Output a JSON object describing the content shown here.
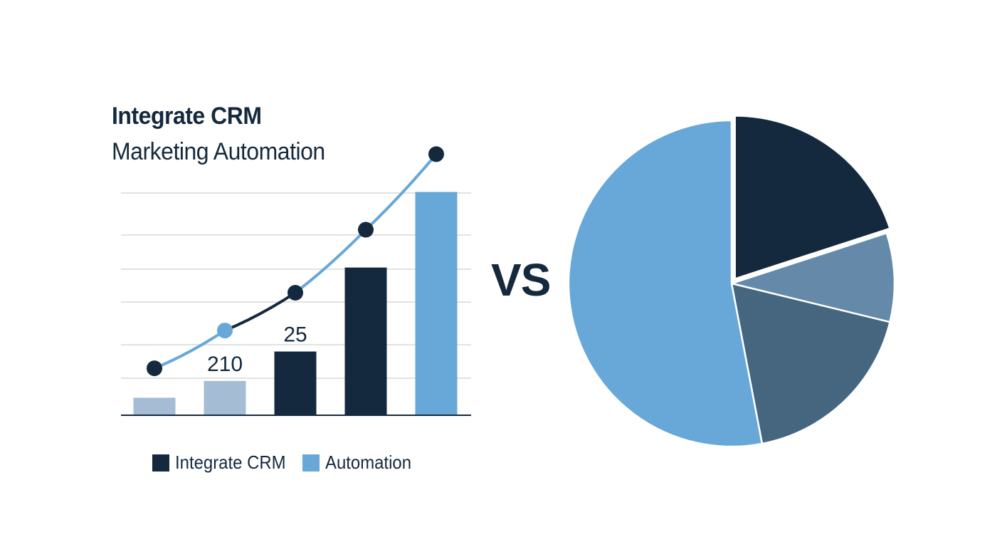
{
  "title": {
    "line1": "Integrate CRM",
    "line2": "Marketing Automation"
  },
  "vs_label": "VS",
  "colors": {
    "navy": "#14293d",
    "blue": "#67a8d8",
    "light_blue": "#a4bcd4",
    "steel": "#6589a8",
    "slate": "#46657f",
    "grid": "#d9d9d9",
    "axis": "#14293d"
  },
  "chart_data": [
    {
      "type": "bar",
      "categories": [
        "",
        "",
        "",
        "",
        ""
      ],
      "values": [
        4,
        8,
        15,
        35,
        53
      ],
      "bar_colors": [
        "light_blue",
        "light_blue",
        "navy",
        "navy",
        "blue"
      ],
      "data_labels": [
        "",
        "210",
        "25",
        "",
        ""
      ],
      "ylim": [
        0,
        58
      ],
      "grid": true,
      "trend_line": {
        "values": [
          11,
          20,
          29,
          44,
          62
        ],
        "point_colors": [
          "navy",
          "blue",
          "navy",
          "navy",
          "navy"
        ],
        "segment_colors": [
          "blue",
          "navy",
          "blue",
          "blue"
        ]
      },
      "legend": {
        "placement": "bottom",
        "entries": [
          {
            "name": "Integrate CRM",
            "color": "navy"
          },
          {
            "name": "Automation",
            "color": "blue"
          }
        ]
      }
    },
    {
      "type": "pie",
      "start_angle_deg": 0,
      "slices": [
        {
          "value": 20,
          "color": "navy"
        },
        {
          "value": 8.8,
          "color": "steel"
        },
        {
          "value": 18.2,
          "color": "slate"
        },
        {
          "value": 53,
          "color": "blue"
        }
      ],
      "exploded_slice": 0
    }
  ]
}
